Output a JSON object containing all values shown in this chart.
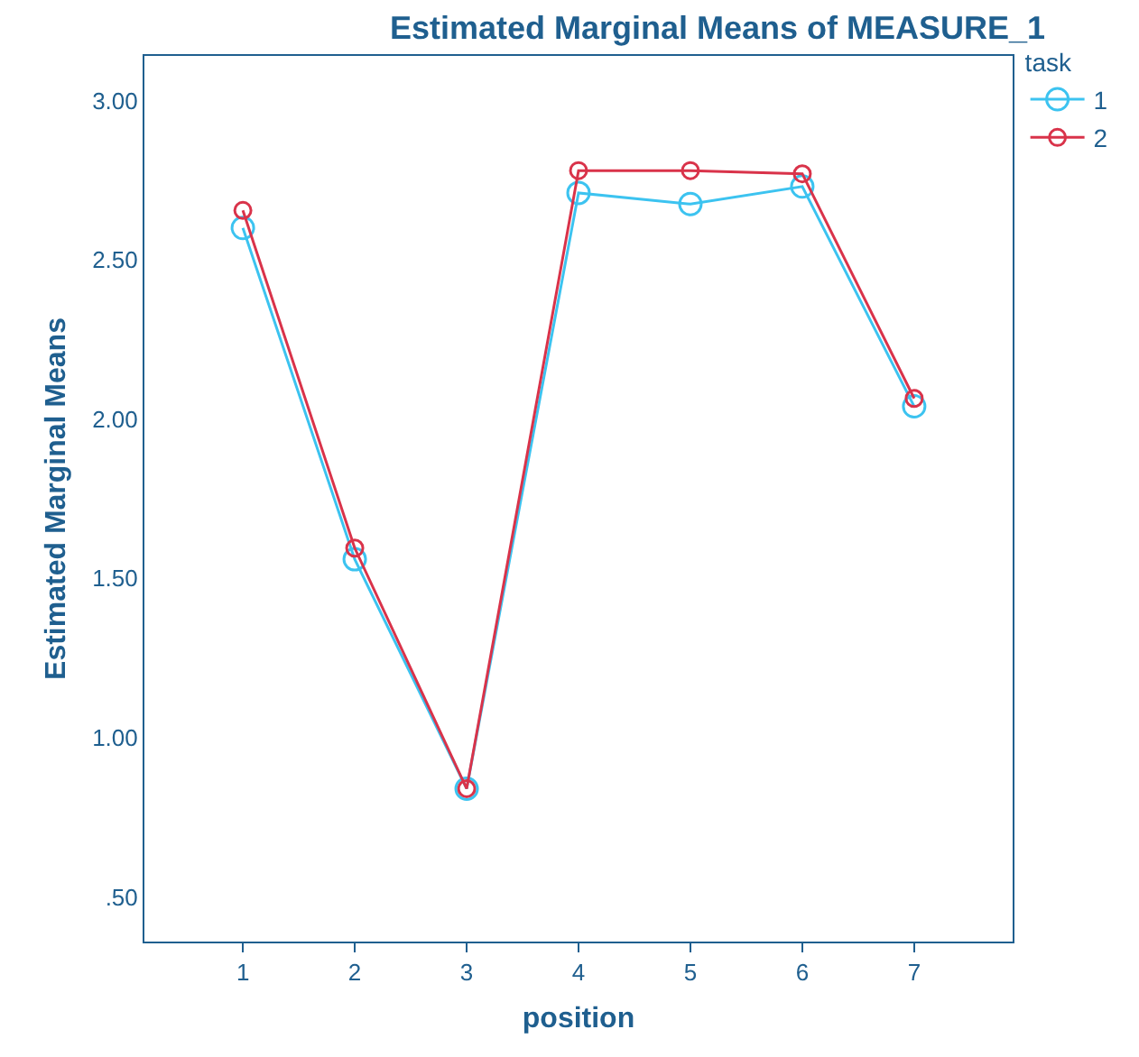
{
  "chart_data": {
    "type": "line",
    "title": "Estimated Marginal Means of MEASURE_1",
    "xlabel": "position",
    "ylabel": "Estimated Marginal Means",
    "legend_title": "task",
    "x": [
      1,
      2,
      3,
      4,
      5,
      6,
      7
    ],
    "series": [
      {
        "name": "1",
        "color": "#3cc3f0",
        "values": [
          2.6,
          1.56,
          0.84,
          2.71,
          2.675,
          2.73,
          2.04
        ]
      },
      {
        "name": "2",
        "color": "#d9334a",
        "values": [
          2.655,
          1.595,
          0.84,
          2.78,
          2.78,
          2.77,
          2.065
        ]
      }
    ],
    "xlim": [
      0.12,
      7.88
    ],
    "xticks": [
      1,
      2,
      3,
      4,
      5,
      6,
      7
    ],
    "ylim": [
      0.36,
      3.14
    ],
    "yticks": [
      {
        "value": 0.5,
        "label": ".50"
      },
      {
        "value": 1,
        "label": "1.00"
      },
      {
        "value": 1.5,
        "label": "1.50"
      },
      {
        "value": 2,
        "label": "2.00"
      },
      {
        "value": 2.5,
        "label": "2.50"
      },
      {
        "value": 3,
        "label": "3.00"
      }
    ],
    "grid": false,
    "legend": "top right",
    "marker": "circle",
    "line_style": "solid"
  }
}
